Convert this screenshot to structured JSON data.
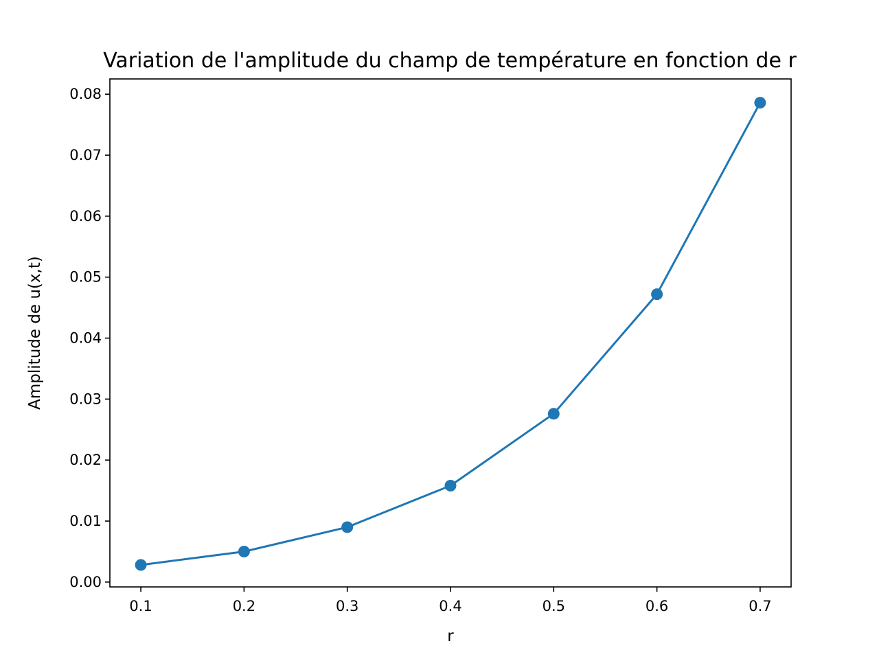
{
  "chart_data": {
    "type": "line",
    "title": "Variation de l'amplitude du champ de température en fonction de r",
    "xlabel": "r",
    "ylabel": "Amplitude de u(x,t)",
    "x": [
      0.1,
      0.2,
      0.3,
      0.4,
      0.5,
      0.6,
      0.7
    ],
    "series": [
      {
        "values": [
          0.0028,
          0.005,
          0.009,
          0.0158,
          0.0276,
          0.0472,
          0.0786
        ]
      }
    ],
    "xlim": [
      0.07,
      0.73
    ],
    "ylim": [
      -0.0008,
      0.0825
    ],
    "xticks": [
      0.1,
      0.2,
      0.3,
      0.4,
      0.5,
      0.6,
      0.7
    ],
    "xtick_labels": [
      "0.1",
      "0.2",
      "0.3",
      "0.4",
      "0.5",
      "0.6",
      "0.7"
    ],
    "yticks": [
      0.0,
      0.01,
      0.02,
      0.03,
      0.04,
      0.05,
      0.06,
      0.07,
      0.08
    ],
    "ytick_labels": [
      "0.00",
      "0.01",
      "0.02",
      "0.03",
      "0.04",
      "0.05",
      "0.06",
      "0.07",
      "0.08"
    ],
    "grid": false,
    "marker": "circle",
    "color": "#1f77b4"
  }
}
